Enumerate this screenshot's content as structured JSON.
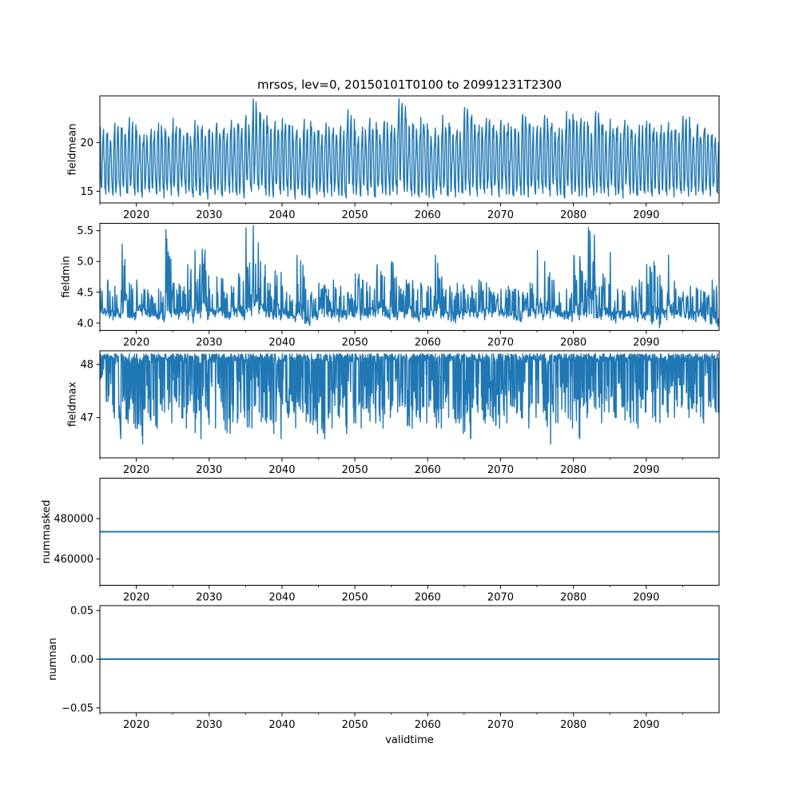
{
  "chart_data": {
    "type": "line",
    "title": "mrsos, lev=0, 20150101T0100 to 20991231T2300",
    "xlabel": "validtime",
    "x_range": [
      2015.0,
      2100.0
    ],
    "x_ticks": [
      2020,
      2030,
      2040,
      2050,
      2060,
      2070,
      2080,
      2090
    ],
    "x_tick_labels": [
      "2020",
      "2030",
      "2040",
      "2050",
      "2060",
      "2070",
      "2080",
      "2090"
    ],
    "line_color": "#1f77b4",
    "panels": [
      {
        "id": "fieldmean",
        "ylabel": "fieldmean",
        "ylim": [
          13.8,
          24.8
        ],
        "y_ticks": [
          15,
          20
        ],
        "y_tick_labels": [
          "15",
          "20"
        ],
        "series": {
          "name": "fieldmean",
          "x": [
            2015.0,
            2016.0,
            2017.0,
            2018.0,
            2019.0,
            2020.0,
            2021.0,
            2022.0,
            2023.0,
            2024.0,
            2025.0,
            2026.0,
            2027.0,
            2028.0,
            2029.0,
            2030.0,
            2031.0,
            2032.0,
            2033.0,
            2034.0,
            2035.0,
            2036.0,
            2037.0,
            2038.0,
            2039.0,
            2040.0,
            2041.0,
            2042.0,
            2043.0,
            2044.0,
            2045.0,
            2046.0,
            2047.0,
            2048.0,
            2049.0,
            2050.0,
            2051.0,
            2052.0,
            2053.0,
            2054.0,
            2055.0,
            2056.0,
            2057.0,
            2058.0,
            2059.0,
            2060.0,
            2061.0,
            2062.0,
            2063.0,
            2064.0,
            2065.0,
            2066.0,
            2067.0,
            2068.0,
            2069.0,
            2070.0,
            2071.0,
            2072.0,
            2073.0,
            2074.0,
            2075.0,
            2076.0,
            2077.0,
            2078.0,
            2079.0,
            2080.0,
            2081.0,
            2082.0,
            2083.0,
            2084.0,
            2085.0,
            2086.0,
            2087.0,
            2088.0,
            2089.0,
            2090.0,
            2091.0,
            2092.0,
            2093.0,
            2094.0,
            2095.0,
            2096.0,
            2097.0,
            2098.0,
            2099.0,
            2100.0
          ],
          "max": [
            21.6,
            21.0,
            22.0,
            21.5,
            22.6,
            21.2,
            20.8,
            21.4,
            22.0,
            21.1,
            22.5,
            21.3,
            20.9,
            22.3,
            21.7,
            21.4,
            22.0,
            21.5,
            22.3,
            21.8,
            22.8,
            24.5,
            23.0,
            21.7,
            22.2,
            22.5,
            21.8,
            21.3,
            22.4,
            21.6,
            21.2,
            22.0,
            21.5,
            21.7,
            23.4,
            21.2,
            21.6,
            22.5,
            21.3,
            22.2,
            21.8,
            24.5,
            22.4,
            21.8,
            22.6,
            21.3,
            21.5,
            22.8,
            21.6,
            21.3,
            23.6,
            22.8,
            21.8,
            22.5,
            21.8,
            22.3,
            22.0,
            21.4,
            22.9,
            21.8,
            21.7,
            22.8,
            22.0,
            21.5,
            23.2,
            22.3,
            22.5,
            21.7,
            23.2,
            21.8,
            22.4,
            21.6,
            22.3,
            21.2,
            21.8,
            22.2,
            21.5,
            21.8,
            22.1,
            21.3,
            22.7,
            21.4,
            21.9,
            21.5,
            20.8,
            21.2
          ],
          "min": [
            14.7,
            14.6,
            14.5,
            14.8,
            14.6,
            14.4,
            14.9,
            14.7,
            14.3,
            14.6,
            14.5,
            14.8,
            14.4,
            14.6,
            14.2,
            14.7,
            14.5,
            14.8,
            14.6,
            14.3,
            15.0,
            15.2,
            14.6,
            14.4,
            14.7,
            14.5,
            14.2,
            14.6,
            14.3,
            14.7,
            14.4,
            14.5,
            14.6,
            14.3,
            14.8,
            14.5,
            14.6,
            14.4,
            14.8,
            14.6,
            14.7,
            15.0,
            14.5,
            14.4,
            14.6,
            14.3,
            14.7,
            14.5,
            14.4,
            14.8,
            14.6,
            14.5,
            14.8,
            14.6,
            14.4,
            14.7,
            14.5,
            14.6,
            14.4,
            14.7,
            14.8,
            14.5,
            14.6,
            14.3,
            14.7,
            14.5,
            14.4,
            14.6,
            14.8,
            14.5,
            14.6,
            14.3,
            14.7,
            14.6,
            14.8,
            14.5,
            14.7,
            14.6,
            14.4,
            14.8,
            14.5,
            14.6,
            14.7,
            14.5,
            14.8,
            14.6
          ],
          "cycles_per_year": 2
        }
      },
      {
        "id": "fieldmin",
        "ylabel": "fieldmin",
        "ylim": [
          3.88,
          5.62
        ],
        "y_ticks": [
          4.0,
          4.5,
          5.0,
          5.5
        ],
        "y_tick_labels": [
          "4.0",
          "4.5",
          "5.0",
          "5.5"
        ],
        "series": {
          "name": "fieldmin",
          "x": [
            2015.0,
            2016.0,
            2017.0,
            2018.0,
            2019.0,
            2020.0,
            2021.0,
            2022.0,
            2023.0,
            2024.0,
            2025.0,
            2026.0,
            2027.0,
            2028.0,
            2029.0,
            2030.0,
            2031.0,
            2032.0,
            2033.0,
            2034.0,
            2035.0,
            2036.0,
            2037.0,
            2038.0,
            2039.0,
            2040.0,
            2041.0,
            2042.0,
            2043.0,
            2044.0,
            2045.0,
            2046.0,
            2047.0,
            2048.0,
            2049.0,
            2050.0,
            2051.0,
            2052.0,
            2053.0,
            2054.0,
            2055.0,
            2056.0,
            2057.0,
            2058.0,
            2059.0,
            2060.0,
            2061.0,
            2062.0,
            2063.0,
            2064.0,
            2065.0,
            2066.0,
            2067.0,
            2068.0,
            2069.0,
            2070.0,
            2071.0,
            2072.0,
            2073.0,
            2074.0,
            2075.0,
            2076.0,
            2077.0,
            2078.0,
            2079.0,
            2080.0,
            2081.0,
            2082.0,
            2083.0,
            2084.0,
            2085.0,
            2086.0,
            2087.0,
            2088.0,
            2089.0,
            2090.0,
            2091.0,
            2092.0,
            2093.0,
            2094.0,
            2095.0,
            2096.0,
            2097.0,
            2098.0,
            2099.0,
            2100.0
          ],
          "max": [
            4.55,
            4.7,
            4.6,
            5.28,
            4.65,
            4.7,
            4.55,
            4.45,
            4.55,
            5.52,
            4.65,
            4.6,
            4.95,
            5.18,
            5.2,
            4.55,
            4.75,
            4.5,
            4.6,
            4.8,
            5.55,
            5.58,
            5.0,
            4.65,
            4.85,
            4.6,
            4.45,
            5.1,
            4.75,
            4.5,
            4.65,
            4.55,
            4.7,
            4.6,
            4.5,
            4.8,
            4.7,
            4.6,
            4.95,
            4.75,
            5.0,
            4.6,
            4.7,
            4.55,
            4.65,
            4.6,
            5.1,
            4.55,
            4.6,
            4.65,
            4.55,
            4.6,
            4.7,
            4.65,
            4.5,
            4.55,
            4.6,
            4.55,
            4.5,
            4.65,
            5.18,
            5.0,
            4.7,
            4.5,
            4.55,
            5.1,
            4.85,
            5.55,
            4.6,
            4.8,
            5.15,
            4.55,
            4.5,
            4.6,
            4.7,
            4.95,
            5.0,
            4.6,
            5.1,
            4.55,
            4.5,
            4.6,
            4.55,
            4.5,
            4.7,
            4.35
          ],
          "min": [
            4.12,
            4.05,
            4.08,
            4.1,
            4.05,
            4.12,
            4.1,
            4.08,
            4.02,
            4.1,
            4.06,
            4.12,
            4.0,
            4.08,
            4.05,
            4.1,
            4.12,
            4.06,
            4.1,
            4.05,
            4.12,
            4.15,
            4.1,
            4.06,
            4.05,
            4.08,
            4.02,
            4.06,
            3.96,
            4.05,
            4.1,
            4.08,
            4.02,
            4.06,
            4.1,
            4.05,
            4.08,
            4.1,
            4.12,
            4.06,
            4.05,
            4.08,
            4.1,
            4.02,
            4.06,
            4.1,
            4.08,
            4.05,
            4.0,
            4.06,
            4.1,
            4.08,
            4.05,
            4.1,
            4.12,
            4.08,
            4.06,
            4.02,
            4.1,
            4.08,
            4.05,
            4.08,
            4.1,
            4.06,
            4.02,
            4.05,
            4.1,
            4.08,
            4.06,
            4.1,
            4.0,
            4.05,
            4.08,
            4.02,
            4.05,
            3.98,
            3.92,
            4.05,
            4.08,
            4.1,
            4.06,
            4.02,
            4.08,
            3.98,
            3.95,
            4.05
          ],
          "cycles_per_year": 2
        }
      },
      {
        "id": "fieldmax",
        "ylabel": "fieldmax",
        "ylim": [
          46.24,
          48.26
        ],
        "y_ticks": [
          47,
          48
        ],
        "y_tick_labels": [
          "47",
          "48"
        ],
        "series": {
          "name": "fieldmax",
          "x": [
            2015.0,
            2016.0,
            2017.0,
            2018.0,
            2019.0,
            2020.0,
            2021.0,
            2022.0,
            2023.0,
            2024.0,
            2025.0,
            2026.0,
            2027.0,
            2028.0,
            2029.0,
            2030.0,
            2031.0,
            2032.0,
            2033.0,
            2034.0,
            2035.0,
            2036.0,
            2037.0,
            2038.0,
            2039.0,
            2040.0,
            2041.0,
            2042.0,
            2043.0,
            2044.0,
            2045.0,
            2046.0,
            2047.0,
            2048.0,
            2049.0,
            2050.0,
            2051.0,
            2052.0,
            2053.0,
            2054.0,
            2055.0,
            2056.0,
            2057.0,
            2058.0,
            2059.0,
            2060.0,
            2061.0,
            2062.0,
            2063.0,
            2064.0,
            2065.0,
            2066.0,
            2067.0,
            2068.0,
            2069.0,
            2070.0,
            2071.0,
            2072.0,
            2073.0,
            2074.0,
            2075.0,
            2076.0,
            2077.0,
            2078.0,
            2079.0,
            2080.0,
            2081.0,
            2082.0,
            2083.0,
            2084.0,
            2085.0,
            2086.0,
            2087.0,
            2088.0,
            2089.0,
            2090.0,
            2091.0,
            2092.0,
            2093.0,
            2094.0,
            2095.0,
            2096.0,
            2097.0,
            2098.0,
            2099.0,
            2100.0
          ],
          "max": [
            48.2,
            48.2,
            48.2,
            48.2,
            48.2,
            48.2,
            48.2,
            48.2,
            48.2,
            48.2,
            48.2,
            48.2,
            48.2,
            48.2,
            48.2,
            48.2,
            48.2,
            48.2,
            48.2,
            48.2,
            48.2,
            48.2,
            48.2,
            48.2,
            48.2,
            48.2,
            48.2,
            48.2,
            48.2,
            48.2,
            48.2,
            48.2,
            48.2,
            48.2,
            48.2,
            48.2,
            48.2,
            48.2,
            48.2,
            48.2,
            48.2,
            48.2,
            48.2,
            48.2,
            48.2,
            48.2,
            48.2,
            48.2,
            48.2,
            48.2,
            48.2,
            48.2,
            48.2,
            48.2,
            48.2,
            48.2,
            48.2,
            48.2,
            48.2,
            48.2,
            48.2,
            48.2,
            48.2,
            48.2,
            48.2,
            48.2,
            48.2,
            48.2,
            48.2,
            48.2,
            48.2,
            48.2,
            48.2,
            48.2,
            48.2,
            48.2,
            48.2,
            48.2,
            48.2,
            48.2,
            48.2,
            48.2,
            48.2,
            48.2,
            48.2,
            48.2
          ],
          "min": [
            47.3,
            47.1,
            46.6,
            46.9,
            46.8,
            46.5,
            47.0,
            46.8,
            47.1,
            46.9,
            47.2,
            46.8,
            47.1,
            46.6,
            47.0,
            46.8,
            47.2,
            46.7,
            46.9,
            47.0,
            46.8,
            47.1,
            46.9,
            46.7,
            46.6,
            47.0,
            46.8,
            47.1,
            46.9,
            46.7,
            46.6,
            46.8,
            47.0,
            46.7,
            46.9,
            46.8,
            47.1,
            46.9,
            46.8,
            47.0,
            47.1,
            47.2,
            46.8,
            47.0,
            46.9,
            47.1,
            46.8,
            47.0,
            46.9,
            46.7,
            46.6,
            47.1,
            46.9,
            47.0,
            46.8,
            46.9,
            47.2,
            47.0,
            46.8,
            47.0,
            47.1,
            46.5,
            46.9,
            47.1,
            46.8,
            46.6,
            47.0,
            47.2,
            46.9,
            47.1,
            47.0,
            47.2,
            46.9,
            46.8,
            47.1,
            47.0,
            46.9,
            47.1,
            47.0,
            47.2,
            47.0,
            47.1,
            46.9,
            47.2,
            47.1,
            47.3
          ],
          "cycles_per_year": 3
        }
      },
      {
        "id": "nummasked",
        "ylabel": "nummasked",
        "ylim": [
          447000,
          500000
        ],
        "y_ticks": [
          460000,
          480000
        ],
        "y_tick_labels": [
          "460000",
          "480000"
        ],
        "series": {
          "name": "nummasked",
          "x": [
            2015.0,
            2100.0
          ],
          "y": [
            473500,
            473500
          ]
        }
      },
      {
        "id": "numnan",
        "ylabel": "numnan",
        "ylim": [
          -0.055,
          0.055
        ],
        "y_ticks": [
          -0.05,
          0.0,
          0.05
        ],
        "y_tick_labels": [
          "−0.05",
          "0.00",
          "0.05"
        ],
        "series": {
          "name": "numnan",
          "x": [
            2015.0,
            2100.0
          ],
          "y": [
            0.0,
            0.0
          ]
        }
      }
    ]
  }
}
